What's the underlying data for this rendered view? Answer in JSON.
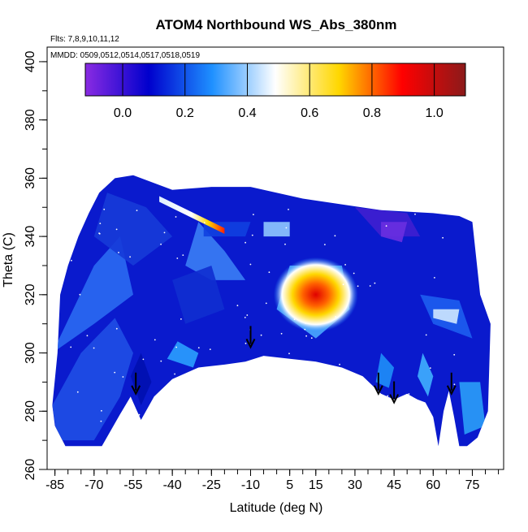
{
  "chart_data": {
    "type": "heatmap",
    "title": "ATOM4 Northbound WS_Abs_380nm",
    "flights_line": "Flts: 7,8,9,10,11,12",
    "dates_line": "MMDD: 0509,0512,0514,0517,0518,0519",
    "xlabel": "Latitude (deg N)",
    "ylabel": "Theta (C)",
    "xlim": [
      -88,
      87
    ],
    "ylim": [
      260,
      405
    ],
    "x_ticks": [
      -85,
      -70,
      -55,
      -40,
      -25,
      -10,
      5,
      15,
      30,
      45,
      60,
      75
    ],
    "y_ticks": [
      260,
      280,
      300,
      320,
      340,
      360,
      380,
      400
    ],
    "colorbar": {
      "range": [
        -0.12,
        1.1
      ],
      "ticks": [
        0.0,
        0.2,
        0.4,
        0.6,
        0.8,
        1.0
      ],
      "tick_labels": [
        "0.0",
        "0.2",
        "0.4",
        "0.6",
        "0.8",
        "1.0"
      ],
      "colors": [
        "#8a2be2",
        "#0000cd",
        "#1e90ff",
        "#ffffff",
        "#ffd700",
        "#ff0000",
        "#8b1a1a"
      ]
    },
    "features": {
      "tropopause_arrows_lat": [
        -54,
        -10,
        39,
        45,
        67
      ],
      "max_value_region": {
        "lat": 15,
        "theta": 320,
        "value": 1.05
      },
      "upper_streak": {
        "lat_range": [
          -45,
          -20
        ],
        "theta_range": [
          342,
          353
        ],
        "value": 0.85
      }
    }
  }
}
